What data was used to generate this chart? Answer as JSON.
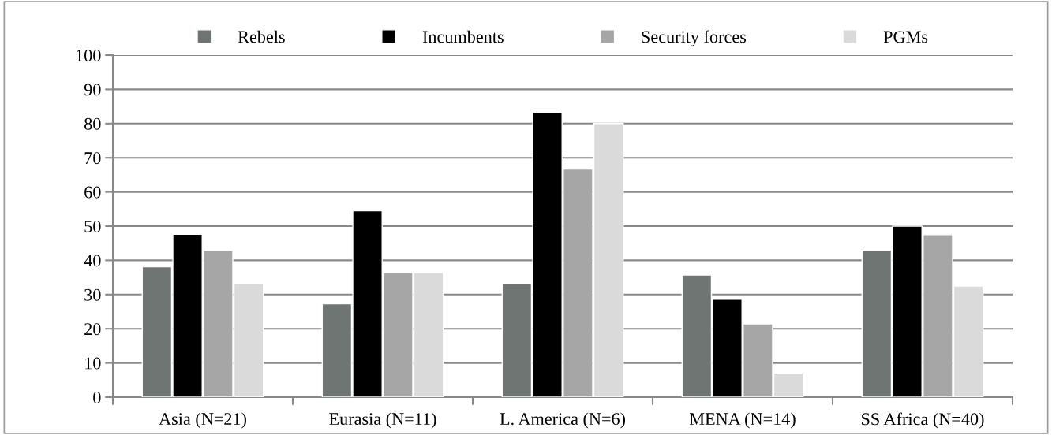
{
  "chart_data": {
    "type": "bar",
    "categories": [
      "Asia (N=21)",
      "Eurasia (N=11)",
      "L. America (N=6)",
      "MENA (N=14)",
      "SS Africa (N=40)"
    ],
    "series": [
      {
        "name": "Rebels",
        "color": "#6f7572",
        "values": [
          38.1,
          27.3,
          33.3,
          35.7,
          43.0
        ]
      },
      {
        "name": "Incumbents",
        "color": "#000000",
        "values": [
          47.6,
          54.5,
          83.3,
          28.6,
          50.0
        ]
      },
      {
        "name": "Security forces",
        "color": "#a6a6a6",
        "values": [
          42.9,
          36.4,
          66.7,
          21.4,
          47.5
        ]
      },
      {
        "name": "PGMs",
        "color": "#dadada",
        "values": [
          33.3,
          36.4,
          80.0,
          7.1,
          32.5
        ]
      }
    ],
    "ylim": [
      0,
      100
    ],
    "yticks": [
      0,
      10,
      20,
      30,
      40,
      50,
      60,
      70,
      80,
      90,
      100
    ],
    "grid": "y",
    "legend": "top"
  }
}
